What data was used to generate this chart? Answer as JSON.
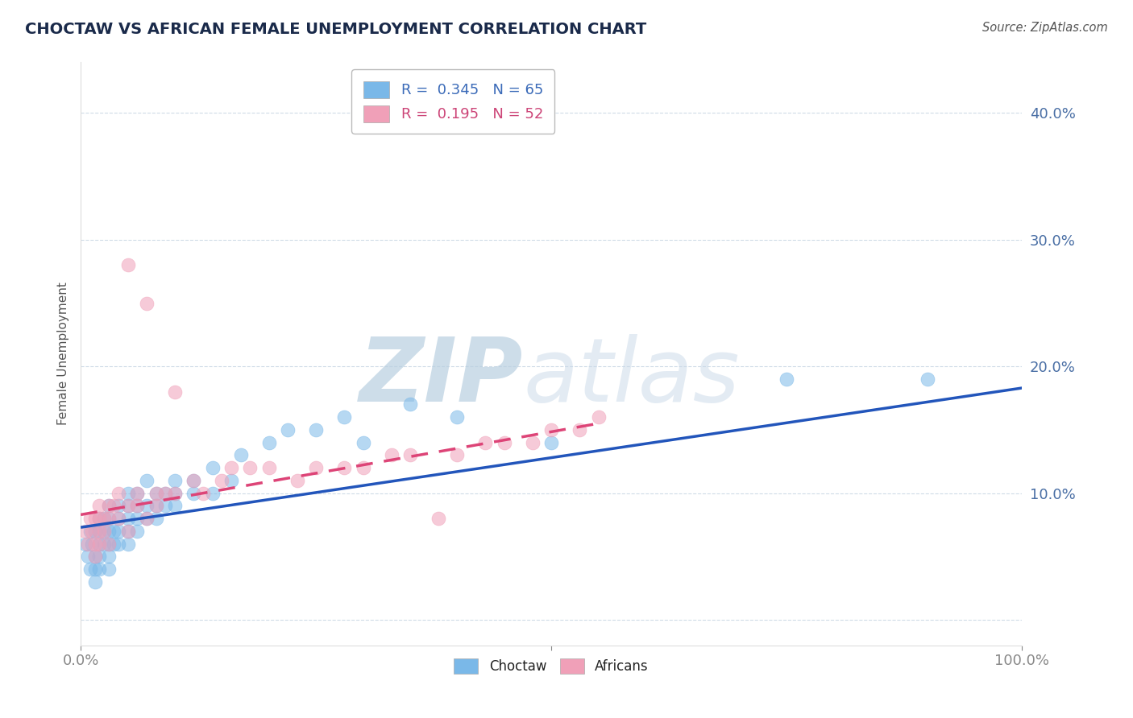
{
  "title": "CHOCTAW VS AFRICAN FEMALE UNEMPLOYMENT CORRELATION CHART",
  "source_text": "Source: ZipAtlas.com",
  "ylabel": "Female Unemployment",
  "xlim": [
    0,
    1.0
  ],
  "ylim": [
    -0.02,
    0.44
  ],
  "blue_color": "#7ab8e8",
  "pink_color": "#f0a0b8",
  "blue_line_color": "#2255bb",
  "pink_line_color": "#dd4477",
  "watermark_zip": "ZIP",
  "watermark_atlas": "atlas",
  "watermark_color": "#d0dff0",
  "choctaw_x": [
    0.005,
    0.008,
    0.01,
    0.01,
    0.012,
    0.015,
    0.015,
    0.015,
    0.015,
    0.02,
    0.02,
    0.02,
    0.02,
    0.02,
    0.025,
    0.025,
    0.025,
    0.03,
    0.03,
    0.03,
    0.03,
    0.03,
    0.03,
    0.035,
    0.035,
    0.04,
    0.04,
    0.04,
    0.04,
    0.05,
    0.05,
    0.05,
    0.05,
    0.05,
    0.06,
    0.06,
    0.06,
    0.06,
    0.07,
    0.07,
    0.07,
    0.08,
    0.08,
    0.08,
    0.09,
    0.09,
    0.1,
    0.1,
    0.1,
    0.12,
    0.12,
    0.14,
    0.14,
    0.16,
    0.17,
    0.2,
    0.22,
    0.25,
    0.28,
    0.3,
    0.35,
    0.4,
    0.5,
    0.75,
    0.9
  ],
  "choctaw_y": [
    0.06,
    0.05,
    0.07,
    0.04,
    0.06,
    0.07,
    0.05,
    0.04,
    0.03,
    0.06,
    0.07,
    0.08,
    0.05,
    0.04,
    0.07,
    0.06,
    0.08,
    0.06,
    0.07,
    0.08,
    0.05,
    0.04,
    0.09,
    0.07,
    0.06,
    0.07,
    0.08,
    0.06,
    0.09,
    0.08,
    0.07,
    0.09,
    0.06,
    0.1,
    0.08,
    0.09,
    0.07,
    0.1,
    0.09,
    0.08,
    0.11,
    0.09,
    0.1,
    0.08,
    0.1,
    0.09,
    0.09,
    0.11,
    0.1,
    0.11,
    0.1,
    0.12,
    0.1,
    0.11,
    0.13,
    0.14,
    0.15,
    0.15,
    0.16,
    0.14,
    0.17,
    0.16,
    0.14,
    0.19,
    0.19
  ],
  "africans_x": [
    0.005,
    0.008,
    0.01,
    0.012,
    0.015,
    0.015,
    0.015,
    0.02,
    0.02,
    0.02,
    0.02,
    0.025,
    0.025,
    0.03,
    0.03,
    0.03,
    0.035,
    0.04,
    0.04,
    0.05,
    0.05,
    0.05,
    0.06,
    0.06,
    0.07,
    0.07,
    0.08,
    0.08,
    0.09,
    0.1,
    0.1,
    0.12,
    0.13,
    0.15,
    0.16,
    0.18,
    0.2,
    0.23,
    0.25,
    0.28,
    0.3,
    0.33,
    0.35,
    0.38,
    0.4,
    0.43,
    0.45,
    0.48,
    0.5,
    0.53,
    0.55
  ],
  "africans_y": [
    0.07,
    0.06,
    0.08,
    0.07,
    0.08,
    0.06,
    0.05,
    0.08,
    0.07,
    0.09,
    0.06,
    0.08,
    0.07,
    0.08,
    0.09,
    0.06,
    0.09,
    0.08,
    0.1,
    0.09,
    0.07,
    0.28,
    0.09,
    0.1,
    0.08,
    0.25,
    0.1,
    0.09,
    0.1,
    0.1,
    0.18,
    0.11,
    0.1,
    0.11,
    0.12,
    0.12,
    0.12,
    0.11,
    0.12,
    0.12,
    0.12,
    0.13,
    0.13,
    0.08,
    0.13,
    0.14,
    0.14,
    0.14,
    0.15,
    0.15,
    0.16
  ],
  "blue_line_x0": 0.0,
  "blue_line_y0": 0.073,
  "blue_line_x1": 1.0,
  "blue_line_y1": 0.183,
  "pink_line_x0": 0.0,
  "pink_line_y0": 0.083,
  "pink_line_x1": 0.55,
  "pink_line_y1": 0.155
}
